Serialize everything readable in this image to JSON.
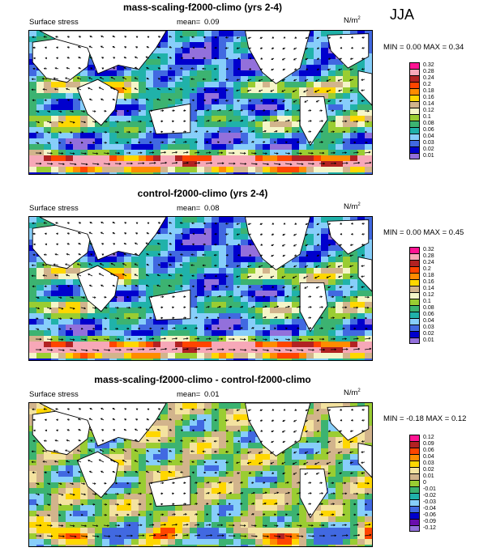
{
  "season": "JJA",
  "panels": [
    {
      "title": "mass-scaling-f2000-climo (yrs 2-4)",
      "var_label": "Surface stress",
      "mean_label": "mean=",
      "mean_value": "0.09",
      "units_base": "N/m",
      "units_exp": "2",
      "minmax": "MIN =  0.00 MAX =  0.34",
      "colorbar": {
        "labels": [
          "0.32",
          "0.28",
          "0.24",
          "0.2",
          "0.18",
          "0.16",
          "0.14",
          "0.12",
          "0.1",
          "0.08",
          "0.06",
          "0.04",
          "0.03",
          "0.02",
          "0.01"
        ],
        "colors": [
          "#ff1493",
          "#f7a8b8",
          "#b22222",
          "#ff4500",
          "#ff8c00",
          "#ffd700",
          "#d2b48c",
          "#f5f5c8",
          "#9acd32",
          "#3cb371",
          "#20b2aa",
          "#87cefa",
          "#4169e1",
          "#0000cd",
          "#9370db"
        ]
      }
    },
    {
      "title": "control-f2000-climo (yrs 2-4)",
      "var_label": "Surface stress",
      "mean_label": "mean=",
      "mean_value": "0.08",
      "units_base": "N/m",
      "units_exp": "2",
      "minmax": "MIN =  0.00 MAX =  0.45",
      "colorbar": {
        "labels": [
          "0.32",
          "0.28",
          "0.24",
          "0.2",
          "0.18",
          "0.16",
          "0.14",
          "0.12",
          "0.1",
          "0.08",
          "0.06",
          "0.04",
          "0.03",
          "0.02",
          "0.01"
        ],
        "colors": [
          "#ff1493",
          "#f7a8b8",
          "#b22222",
          "#ff4500",
          "#ff8c00",
          "#ffd700",
          "#d2b48c",
          "#f5f5c8",
          "#9acd32",
          "#3cb371",
          "#20b2aa",
          "#87cefa",
          "#4169e1",
          "#0000cd",
          "#9370db"
        ]
      }
    },
    {
      "title": "mass-scaling-f2000-climo - control-f2000-climo",
      "var_label": "Surface stress",
      "mean_label": "mean=",
      "mean_value": "0.01",
      "units_base": "N/m",
      "units_exp": "2",
      "minmax": "MIN = -0.18 MAX =  0.12",
      "colorbar": {
        "labels": [
          "0.12",
          "0.09",
          "0.06",
          "0.04",
          "0.03",
          "0.02",
          "0.01",
          "0",
          "-0.01",
          "-0.02",
          "-0.03",
          "-0.04",
          "-0.06",
          "-0.09",
          "-0.12"
        ],
        "colors": [
          "#ff1493",
          "#b22222",
          "#ff4500",
          "#ff8c00",
          "#ffd700",
          "#f4e3a0",
          "#d2b48c",
          "#9acd32",
          "#3cb371",
          "#20b2aa",
          "#87cefa",
          "#4169e1",
          "#0000cd",
          "#6a0dad",
          "#9370db"
        ]
      }
    }
  ]
}
